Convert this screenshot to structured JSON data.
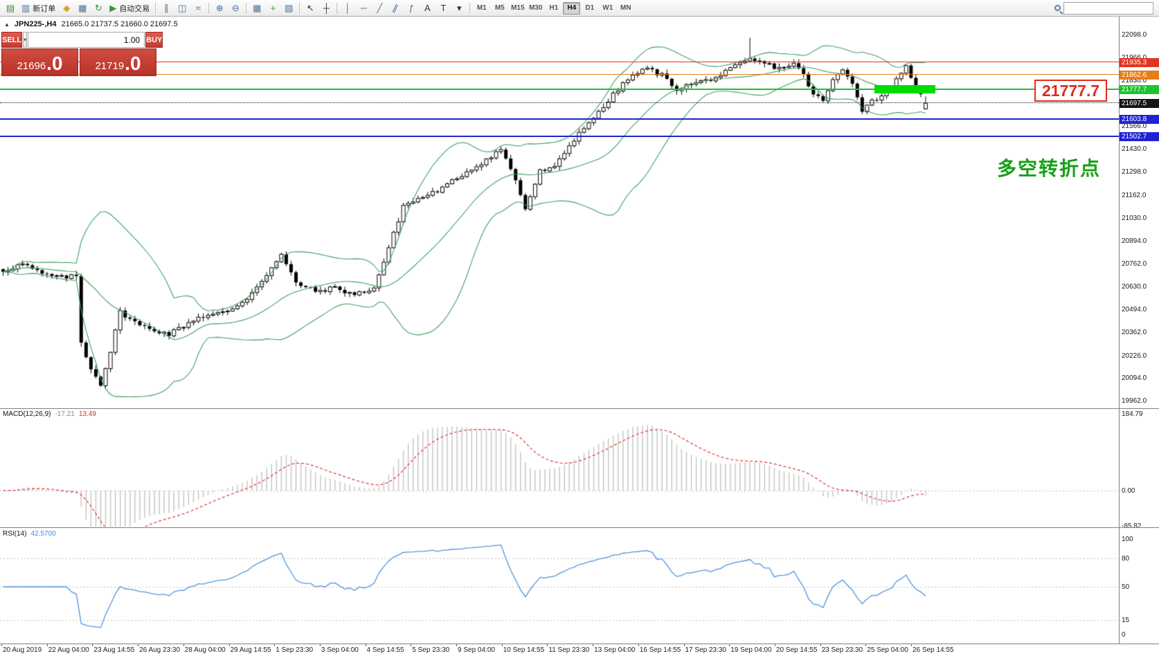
{
  "icons": {
    "chevron_down": "▾",
    "window_marker": "▲"
  },
  "toolbar": {
    "timeframes": [
      "M1",
      "M5",
      "M15",
      "M30",
      "H1",
      "H4",
      "D1",
      "W1",
      "MN"
    ],
    "active_timeframe": "H4",
    "search_value": "",
    "items": [
      {
        "type": "icon",
        "name": "new-chart-button",
        "icon_name": "new-chart-icon",
        "glyph": "▤",
        "color": "#3f8f3f"
      },
      {
        "type": "labelbtn",
        "name": "new-order-button",
        "icon_name": "new-order-icon",
        "glyph": "▥",
        "color": "#4a6f96",
        "label": "新订单"
      },
      {
        "type": "icon",
        "name": "favorites-button",
        "icon_name": "favorites-icon",
        "glyph": "◆",
        "color": "#d9a425"
      },
      {
        "type": "icon",
        "name": "profiles-button",
        "icon_name": "profiles-icon",
        "glyph": "▦",
        "color": "#4a6f96"
      },
      {
        "type": "icon",
        "name": "refresh-button",
        "icon_name": "refresh-icon",
        "glyph": "↻",
        "color": "#3f8f3f"
      },
      {
        "type": "labelbtn",
        "name": "auto-trading-button",
        "icon_name": "play-icon",
        "glyph": "▶",
        "color": "#2e9e2e",
        "label": "自动交易"
      },
      {
        "type": "sep"
      },
      {
        "type": "icon",
        "name": "bar-chart-button",
        "icon_name": "bar-chart-icon",
        "glyph": "∥",
        "color": "#4a6f96"
      },
      {
        "type": "icon",
        "name": "candlestick-chart-button",
        "icon_name": "candlestick-icon",
        "glyph": "◫",
        "color": "#4a6f96"
      },
      {
        "type": "icon",
        "name": "line-chart-button",
        "icon_name": "line-chart-icon",
        "glyph": "≈",
        "color": "#4a6f96"
      },
      {
        "type": "sep"
      },
      {
        "type": "icon",
        "name": "zoom-in-button",
        "icon_name": "zoom-in-icon",
        "glyph": "⊕",
        "color": "#4a6f96"
      },
      {
        "type": "icon",
        "name": "zoom-out-button",
        "icon_name": "zoom-out-icon",
        "glyph": "⊖",
        "color": "#4a6f96"
      },
      {
        "type": "sep"
      },
      {
        "type": "icon",
        "name": "tile-windows-button",
        "icon_name": "tile-windows-icon",
        "glyph": "▦",
        "color": "#4a6f96"
      },
      {
        "type": "icon",
        "name": "indicators-button",
        "icon_name": "indicators-icon",
        "glyph": "+",
        "color": "#2e9e2e"
      },
      {
        "type": "icon",
        "name": "templates-button",
        "icon_name": "templates-icon",
        "glyph": "▨",
        "color": "#4a6f96"
      },
      {
        "type": "sep"
      },
      {
        "type": "icon",
        "name": "cursor-button",
        "icon_name": "cursor-icon",
        "glyph": "↖",
        "color": "#333333"
      },
      {
        "type": "icon",
        "name": "crosshair-button",
        "icon_name": "crosshair-icon",
        "glyph": "┼",
        "color": "#333333"
      },
      {
        "type": "sep"
      },
      {
        "type": "icon",
        "name": "vertical-line-button",
        "icon_name": "vertical-line-icon",
        "glyph": "│",
        "color": "#4a6f96"
      },
      {
        "type": "icon",
        "name": "horizontal-line-button",
        "icon_name": "horizontal-line-icon",
        "glyph": "─",
        "color": "#4a6f96"
      },
      {
        "type": "icon",
        "name": "trendline-button",
        "icon_name": "trendline-icon",
        "glyph": "╱",
        "color": "#4a6f96"
      },
      {
        "type": "icon",
        "name": "equidistant-channel-button",
        "icon_name": "equidistant-channel-icon",
        "glyph": "∥",
        "color": "#4a6f96"
      },
      {
        "type": "icon",
        "name": "fibonacci-button",
        "icon_name": "fibonacci-icon",
        "glyph": "ƒ",
        "color": "#4a6f96"
      },
      {
        "type": "icon",
        "name": "text-button",
        "icon_name": "text-icon",
        "glyph": "A",
        "color": "#333333"
      },
      {
        "type": "icon",
        "name": "text-label-button",
        "icon_name": "text-label-icon",
        "glyph": "T",
        "color": "#333333"
      },
      {
        "type": "icon",
        "name": "shapes-button",
        "icon_name": "chevron-down-icon",
        "glyph": "▾",
        "color": "#333333"
      },
      {
        "type": "sep"
      },
      {
        "type": "tf-group"
      },
      {
        "type": "spacer"
      },
      {
        "type": "search"
      }
    ]
  },
  "chart": {
    "symbol_label": "JPN225-,H4",
    "ohlc": "21665.0 21737.5 21660.0 21697.5"
  },
  "trade_panel": {
    "sell_label": "SELL",
    "buy_label": "BUY",
    "volume": "1.00",
    "sell_price_int": "21696",
    "sell_price_frac": ".0",
    "buy_price_int": "21719",
    "buy_price_frac": ".0"
  },
  "annotations": {
    "price_callout": "21777.7",
    "turning_point": "多空转折点"
  },
  "levels": [
    {
      "price": 21935.3,
      "label": "21935.3",
      "color": "#e23423",
      "thickness": 1,
      "style": "solid"
    },
    {
      "price": 21862.6,
      "label": "21862.6",
      "color": "#e87d18",
      "thickness": 1,
      "style": "solid"
    },
    {
      "price": 21777.7,
      "label": "21777.7",
      "color": "#1fc32f",
      "thickness": 2,
      "style": "solid"
    },
    {
      "price": 21697.5,
      "label": "21697.5",
      "color": "#151515",
      "thickness": 1,
      "style": "dotted"
    },
    {
      "price": 21603.8,
      "label": "21603.8",
      "color": "#2121d4",
      "thickness": 2,
      "style": "solid"
    },
    {
      "price": 21502.7,
      "label": "21502.7",
      "color": "#2121d4",
      "thickness": 2,
      "style": "solid"
    }
  ],
  "price_axis": [
    "22098.0",
    "21966.0",
    "21830.0",
    "21698.0",
    "21566.0",
    "21430.0",
    "21298.0",
    "21162.0",
    "21030.0",
    "20894.0",
    "20762.0",
    "20630.0",
    "20494.0",
    "20362.0",
    "20226.0",
    "20094.0",
    "19962.0"
  ],
  "macd": {
    "label": "MACD(12,26,9)",
    "value_main": "-17.21",
    "value_signal": "13.49",
    "axis": [
      "184.79",
      "0.00",
      "-85.82"
    ]
  },
  "rsi": {
    "label": "RSI(14)",
    "value": "42.5700",
    "axis": [
      "100",
      "80",
      "50",
      "15",
      "0"
    ],
    "level_lines": [
      80,
      50,
      15
    ]
  },
  "time_axis": [
    "20 Aug 2019",
    "22 Aug 04:00",
    "23 Aug 14:55",
    "26 Aug 23:30",
    "28 Aug 04:00",
    "29 Aug 14:55",
    "1 Sep 23:30",
    "3 Sep 04:00",
    "4 Sep 14:55",
    "5 Sep 23:30",
    "9 Sep 04:00",
    "10 Sep 14:55",
    "11 Sep 23:30",
    "13 Sep 04:00",
    "16 Sep 14:55",
    "17 Sep 23:30",
    "19 Sep 04:00",
    "20 Sep 14:55",
    "23 Sep 23:30",
    "25 Sep 04:00",
    "26 Sep 14:55"
  ],
  "chart_data": {
    "type": "candlestick",
    "symbol": "JPN225-",
    "timeframe": "H4",
    "visible_range": {
      "start": "20 Aug 2019",
      "end": "26 Sep 2019"
    },
    "price_axis_range": [
      19962.0,
      22098.0
    ],
    "candle_count": 190,
    "last_candle_ohlc": {
      "open": 21665.0,
      "high": 21737.5,
      "low": 21660.0,
      "close": 21697.5
    },
    "last_close": 21697.5,
    "close_anchors": [
      [
        0,
        20720
      ],
      [
        4,
        20760
      ],
      [
        8,
        20700
      ],
      [
        12,
        20680
      ],
      [
        15,
        20690
      ],
      [
        16,
        20300
      ],
      [
        18,
        20150
      ],
      [
        20,
        20060
      ],
      [
        22,
        20250
      ],
      [
        24,
        20480
      ],
      [
        28,
        20400
      ],
      [
        34,
        20350
      ],
      [
        40,
        20450
      ],
      [
        46,
        20480
      ],
      [
        50,
        20560
      ],
      [
        54,
        20700
      ],
      [
        57,
        20810
      ],
      [
        60,
        20650
      ],
      [
        64,
        20600
      ],
      [
        68,
        20620
      ],
      [
        72,
        20580
      ],
      [
        76,
        20620
      ],
      [
        79,
        20850
      ],
      [
        82,
        21100
      ],
      [
        86,
        21150
      ],
      [
        90,
        21200
      ],
      [
        94,
        21280
      ],
      [
        98,
        21350
      ],
      [
        102,
        21430
      ],
      [
        105,
        21250
      ],
      [
        107,
        21080
      ],
      [
        110,
        21300
      ],
      [
        113,
        21320
      ],
      [
        116,
        21450
      ],
      [
        119,
        21560
      ],
      [
        122,
        21640
      ],
      [
        126,
        21780
      ],
      [
        129,
        21860
      ],
      [
        132,
        21900
      ],
      [
        135,
        21860
      ],
      [
        138,
        21780
      ],
      [
        141,
        21810
      ],
      [
        144,
        21830
      ],
      [
        147,
        21860
      ],
      [
        150,
        21910
      ],
      [
        153,
        21950
      ],
      [
        156,
        21930
      ],
      [
        159,
        21900
      ],
      [
        162,
        21930
      ],
      [
        164,
        21860
      ],
      [
        166,
        21750
      ],
      [
        168,
        21710
      ],
      [
        170,
        21830
      ],
      [
        172,
        21890
      ],
      [
        174,
        21820
      ],
      [
        176,
        21660
      ],
      [
        178,
        21710
      ],
      [
        180,
        21740
      ],
      [
        182,
        21790
      ],
      [
        184,
        21870
      ],
      [
        185,
        21930
      ],
      [
        186,
        21850
      ],
      [
        187,
        21790
      ],
      [
        188,
        21740
      ],
      [
        189,
        21697.5
      ]
    ],
    "spike": {
      "index": 153,
      "high": 22080
    },
    "indicators": {
      "bollinger": {
        "period": 20,
        "deviation": 2
      },
      "macd": {
        "fast": 12,
        "slow": 26,
        "signal": 9,
        "value": -17.21,
        "signal_value": 13.49
      },
      "rsi": {
        "period": 14,
        "value": 42.57
      }
    }
  }
}
